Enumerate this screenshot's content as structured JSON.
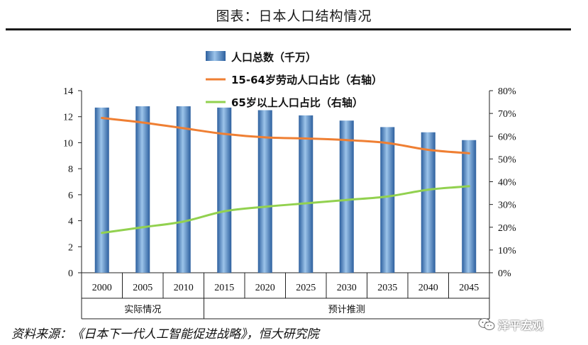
{
  "title": "图表：日本人口结构情况",
  "source": "资料来源：《日本下一代人工智能促进战略》，恒大研究院",
  "watermark": "泽平宏观",
  "colors": {
    "bar_dark": "#2c5f9e",
    "bar_light": "#9cc4ea",
    "working_line": "#ef7f33",
    "elderly_line": "#92d14f",
    "axis": "#222222"
  },
  "chart_data": {
    "type": "bar",
    "categories": [
      "2000",
      "2005",
      "2010",
      "2015",
      "2020",
      "2025",
      "2030",
      "2035",
      "2040",
      "2045"
    ],
    "category_groups": [
      {
        "label": "实际情况",
        "categories": [
          "2000",
          "2005",
          "2010"
        ]
      },
      {
        "label": "预计推测",
        "categories": [
          "2015",
          "2020",
          "2025",
          "2030",
          "2035",
          "2040",
          "2045"
        ]
      }
    ],
    "series": [
      {
        "name": "人口总数（千万）",
        "kind": "bar",
        "axis": "left",
        "values": [
          12.7,
          12.8,
          12.8,
          12.7,
          12.5,
          12.1,
          11.7,
          11.2,
          10.8,
          10.2
        ]
      },
      {
        "name": "15-64岁劳动人口占比（右轴）",
        "kind": "line",
        "axis": "right",
        "values": [
          68,
          66,
          63.5,
          61,
          59.5,
          59,
          58.3,
          57,
          54,
          52.5
        ]
      },
      {
        "name": "65岁以上人口占比（右轴）",
        "kind": "line",
        "axis": "right",
        "values": [
          17.5,
          20,
          22.5,
          27,
          29,
          30.5,
          32,
          33.5,
          36.5,
          38
        ]
      }
    ],
    "left_axis": {
      "min": 0,
      "max": 14,
      "step": 2,
      "ticks": [
        "0",
        "2",
        "4",
        "6",
        "8",
        "10",
        "12",
        "14"
      ]
    },
    "right_axis": {
      "min": 0,
      "max": 80,
      "step": 10,
      "ticks": [
        "0%",
        "10%",
        "20%",
        "30%",
        "40%",
        "50%",
        "60%",
        "70%",
        "80%"
      ]
    },
    "legend_position": "top-center",
    "grid": false
  }
}
